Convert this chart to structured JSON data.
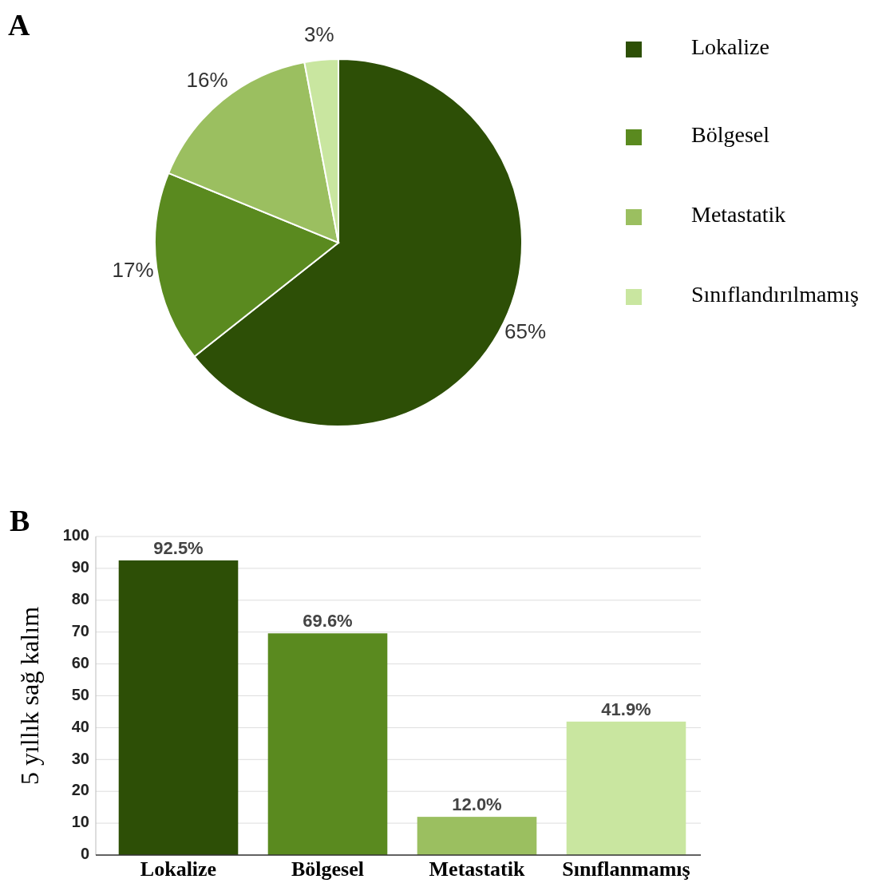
{
  "chart_data": [
    {
      "type": "pie",
      "title": "A",
      "categories": [
        "Lokalize",
        "Bölgesel",
        "Metastatik",
        "Sınıflandırılmamış"
      ],
      "values": [
        65,
        17,
        16,
        3
      ],
      "value_labels": [
        "65%",
        "17%",
        "16%",
        "3%"
      ],
      "colors": [
        "#2d4f06",
        "#5a8a1f",
        "#9bbf60",
        "#c9e6a0"
      ],
      "legend": "right"
    },
    {
      "type": "bar",
      "title": "B",
      "ylabel": "5 yıllık sağ kalım",
      "categories": [
        "Lokalize",
        "Bölgesel",
        "Metastatik",
        "Sınıflanmamış"
      ],
      "values": [
        92.5,
        69.6,
        12.0,
        41.9
      ],
      "value_labels": [
        "92.5%",
        "69.6%",
        "12.0%",
        "41.9%"
      ],
      "colors": [
        "#2d4f06",
        "#5a8a1f",
        "#9bbf60",
        "#c9e6a0"
      ],
      "ylim": [
        0,
        100
      ],
      "yticks": [
        0,
        10,
        20,
        30,
        40,
        50,
        60,
        70,
        80,
        90,
        100
      ],
      "grid": "y"
    }
  ]
}
